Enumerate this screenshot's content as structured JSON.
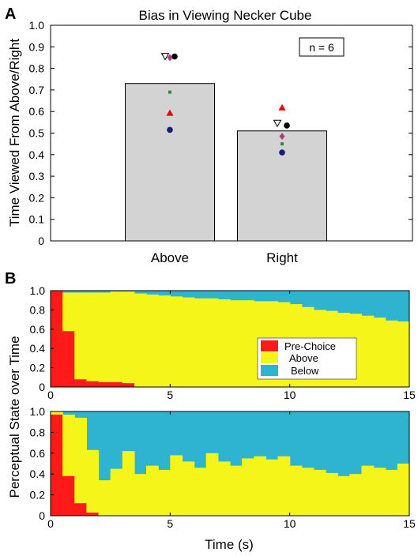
{
  "chart_data": [
    {
      "panel_label": "A",
      "type": "bar",
      "title": "Bias in Viewing Necker Cube",
      "ylabel": "Time Viewed From Above/Right",
      "xlabel": "",
      "categories": [
        "Above",
        "Right"
      ],
      "values": [
        0.73,
        0.51
      ],
      "ylim": [
        0,
        1.0
      ],
      "yticks": [
        "0",
        "0.1",
        "0.2",
        "0.3",
        "0.4",
        "0.5",
        "0.6",
        "0.7",
        "0.8",
        "0.9",
        "1.0"
      ],
      "annotation": "n = 6",
      "bar_color": "#d3d3d3",
      "subjects": [
        {
          "marker": "circle",
          "color": "#000000",
          "values": [
            0.855,
            0.535
          ]
        },
        {
          "marker": "triangle-down-open",
          "color": "#000000",
          "values": [
            0.855,
            0.545
          ]
        },
        {
          "marker": "diamond",
          "color": "#a0447e",
          "values": [
            0.85,
            0.485
          ]
        },
        {
          "marker": "square",
          "color": "#2e8b3a",
          "values": [
            0.69,
            0.45
          ]
        },
        {
          "marker": "triangle",
          "color": "#ee0000",
          "values": [
            0.595,
            0.62
          ]
        },
        {
          "marker": "circle",
          "color": "#1a1a7a",
          "values": [
            0.515,
            0.41
          ]
        }
      ]
    },
    {
      "panel_label": "B",
      "type": "area",
      "ylabel": "Perceptual State over Time",
      "xlabel": "Time (s)",
      "xlim": [
        0,
        15
      ],
      "ylim": [
        0,
        1.0
      ],
      "xticks": [
        "0",
        "5",
        "10",
        "15"
      ],
      "yticks": [
        "0",
        "0.2",
        "0.4",
        "0.6",
        "0.8",
        "1.0"
      ],
      "legend": [
        "Pre-Choice",
        "Above",
        "Below"
      ],
      "colors": {
        "Pre-Choice": "#ff1a1a",
        "Above": "#f5f51a",
        "Below": "#2eb3d1"
      },
      "panels": [
        {
          "x": [
            0,
            0.5,
            1,
            1.5,
            2,
            2.5,
            3,
            3.5,
            4,
            4.5,
            5,
            5.5,
            6,
            6.5,
            7,
            7.5,
            8,
            8.5,
            9,
            9.5,
            10,
            10.5,
            11,
            11.5,
            12,
            12.5,
            13,
            13.5,
            14,
            14.5,
            15
          ],
          "prechoice": [
            1.0,
            0.58,
            0.08,
            0.06,
            0.05,
            0.05,
            0.04,
            0,
            0,
            0,
            0,
            0,
            0,
            0,
            0,
            0,
            0,
            0,
            0,
            0,
            0,
            0,
            0,
            0,
            0,
            0,
            0,
            0,
            0,
            0,
            0
          ],
          "above": [
            0,
            0.4,
            0.9,
            0.92,
            0.93,
            0.94,
            0.95,
            0.97,
            0.96,
            0.95,
            0.94,
            0.93,
            0.92,
            0.92,
            0.91,
            0.9,
            0.9,
            0.89,
            0.89,
            0.88,
            0.86,
            0.83,
            0.8,
            0.79,
            0.77,
            0.76,
            0.74,
            0.72,
            0.69,
            0.68,
            0.66
          ]
        },
        {
          "x": [
            0,
            0.5,
            1,
            1.5,
            2,
            2.5,
            3,
            3.5,
            4,
            4.5,
            5,
            5.5,
            6,
            6.5,
            7,
            7.5,
            8,
            8.5,
            9,
            9.5,
            10,
            10.5,
            11,
            11.5,
            12,
            12.5,
            13,
            13.5,
            14,
            14.5,
            15
          ],
          "prechoice": [
            0.97,
            0.38,
            0.12,
            0.03,
            0,
            0,
            0,
            0,
            0,
            0,
            0,
            0,
            0,
            0,
            0,
            0,
            0,
            0,
            0,
            0,
            0,
            0,
            0,
            0,
            0,
            0,
            0,
            0,
            0,
            0,
            0
          ],
          "above": [
            0.03,
            0.59,
            0.82,
            0.6,
            0.34,
            0.45,
            0.62,
            0.4,
            0.48,
            0.44,
            0.58,
            0.52,
            0.46,
            0.6,
            0.52,
            0.48,
            0.55,
            0.57,
            0.54,
            0.57,
            0.48,
            0.46,
            0.44,
            0.41,
            0.38,
            0.4,
            0.48,
            0.46,
            0.44,
            0.5,
            0.43
          ]
        }
      ]
    }
  ]
}
